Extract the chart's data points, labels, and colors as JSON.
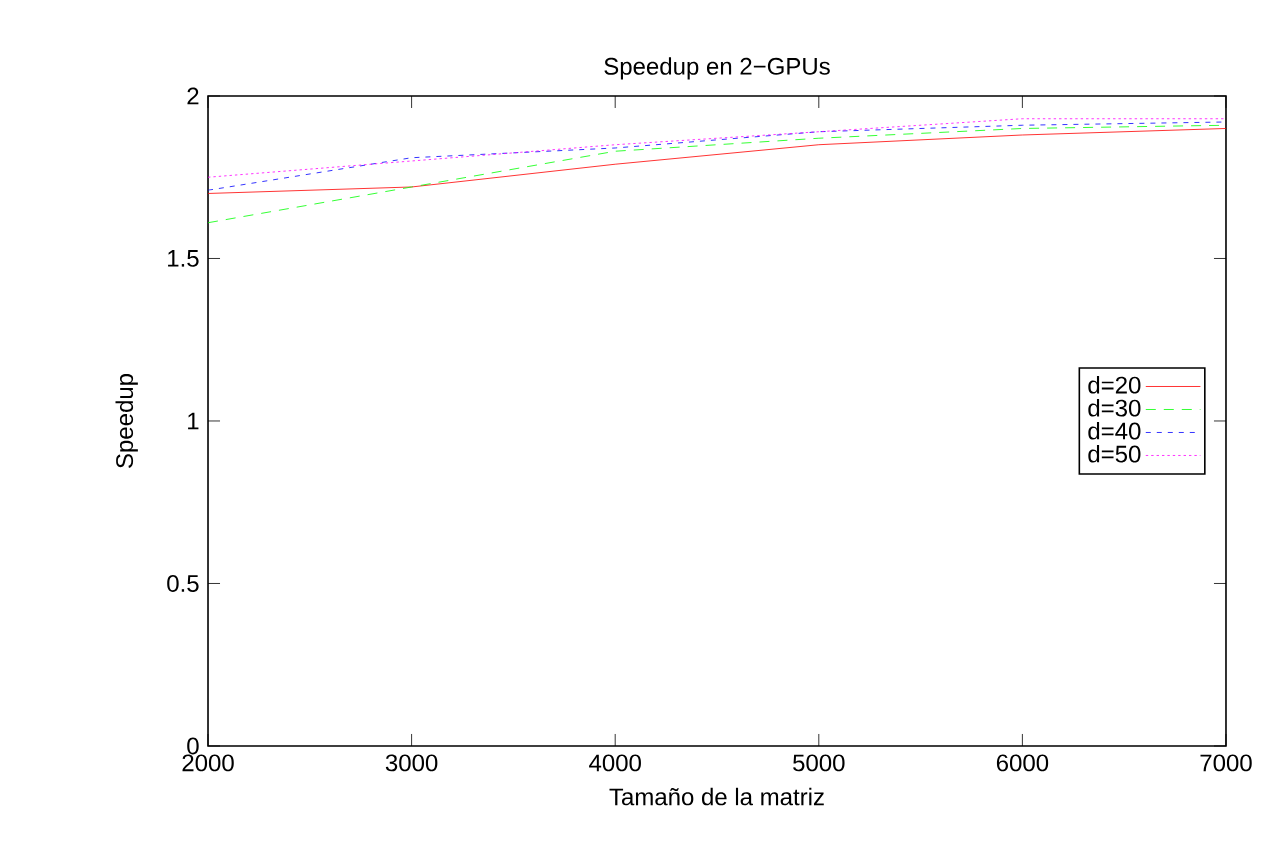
{
  "chart_data": {
    "type": "line",
    "title": "Speedup en 2−GPUs",
    "xlabel": "Tamaño de la matriz",
    "ylabel": "Speedup",
    "x": [
      2000,
      3000,
      4000,
      5000,
      6000,
      7000
    ],
    "series": [
      {
        "name": "d=20",
        "color": "#ff0000",
        "line_style": "solid",
        "values": [
          1.7,
          1.72,
          1.79,
          1.85,
          1.88,
          1.9
        ]
      },
      {
        "name": "d=30",
        "color": "#00ff00",
        "line_style": "dashed",
        "values": [
          1.61,
          1.72,
          1.83,
          1.87,
          1.9,
          1.91
        ]
      },
      {
        "name": "d=40",
        "color": "#0000ff",
        "line_style": "dashed",
        "values": [
          1.71,
          1.81,
          1.84,
          1.89,
          1.91,
          1.92
        ]
      },
      {
        "name": "d=50",
        "color": "#ff00ff",
        "line_style": "dotted",
        "values": [
          1.75,
          1.8,
          1.85,
          1.89,
          1.93,
          1.93
        ]
      }
    ],
    "xlim": [
      2000,
      7000
    ],
    "ylim": [
      0,
      2
    ],
    "xticks": [
      2000,
      3000,
      4000,
      5000,
      6000,
      7000
    ],
    "yticks": [
      0,
      0.5,
      1,
      1.5,
      2
    ],
    "grid": false,
    "legend": "right",
    "marker": "none"
  }
}
